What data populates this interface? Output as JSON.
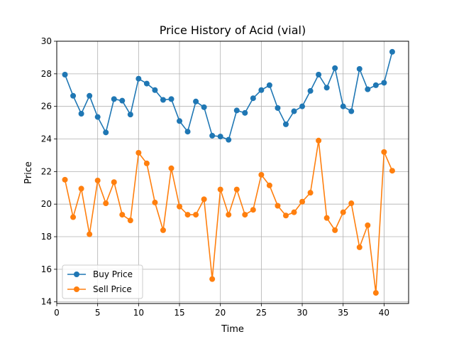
{
  "chart_data": {
    "type": "line",
    "title": "Price History of Acid (vial)",
    "xlabel": "Time",
    "ylabel": "Price",
    "xlim": [
      -0.0,
      43.0
    ],
    "ylim": [
      13.9,
      30.0
    ],
    "xticks": [
      0,
      5,
      10,
      15,
      20,
      25,
      30,
      35,
      40
    ],
    "yticks": [
      14,
      16,
      18,
      20,
      22,
      24,
      26,
      28,
      30
    ],
    "grid": true,
    "legend_position": "lower-left",
    "x": [
      1,
      2,
      3,
      4,
      5,
      6,
      7,
      8,
      9,
      10,
      11,
      12,
      13,
      14,
      15,
      16,
      17,
      18,
      19,
      20,
      21,
      22,
      23,
      24,
      25,
      26,
      27,
      28,
      29,
      30,
      31,
      32,
      33,
      34,
      35,
      36,
      37,
      38,
      39,
      40,
      41
    ],
    "series": [
      {
        "name": "Buy Price",
        "color": "#1f77b4",
        "values": [
          27.95,
          26.65,
          25.55,
          26.65,
          25.35,
          24.4,
          26.45,
          26.35,
          25.5,
          27.7,
          27.4,
          27.0,
          26.4,
          26.45,
          25.1,
          24.45,
          26.3,
          25.95,
          24.2,
          24.15,
          23.95,
          25.75,
          25.6,
          26.5,
          27.0,
          27.3,
          25.9,
          24.9,
          25.7,
          26.0,
          26.95,
          27.95,
          27.15,
          28.35,
          26.0,
          25.7,
          28.3,
          27.05,
          27.3,
          27.45,
          29.35
        ]
      },
      {
        "name": "Sell Price",
        "color": "#ff7f0e",
        "values": [
          21.5,
          19.2,
          20.95,
          18.15,
          21.45,
          20.05,
          21.35,
          19.35,
          19.0,
          23.15,
          22.5,
          20.1,
          18.4,
          22.2,
          19.85,
          19.35,
          19.35,
          20.3,
          15.4,
          20.9,
          19.35,
          20.9,
          19.35,
          19.65,
          21.8,
          21.15,
          19.9,
          19.3,
          19.5,
          20.15,
          20.7,
          23.9,
          19.15,
          18.4,
          19.5,
          20.05,
          17.35,
          18.7,
          14.55,
          23.2,
          22.05
        ]
      }
    ]
  }
}
